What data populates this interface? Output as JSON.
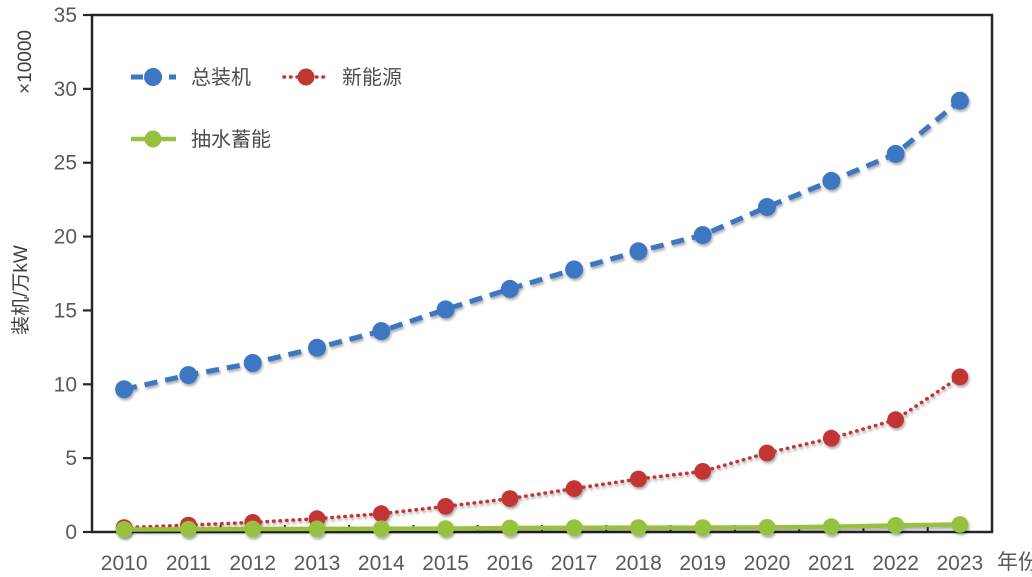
{
  "chart_data": {
    "type": "line",
    "title": "",
    "categories": [
      "2010",
      "2011",
      "2012",
      "2013",
      "2014",
      "2015",
      "2016",
      "2017",
      "2018",
      "2019",
      "2020",
      "2021",
      "2022",
      "2023"
    ],
    "series": [
      {
        "name": "总装机",
        "color": "#3D76C2",
        "line_style": "dashed",
        "marker": "circle",
        "values": [
          9.66,
          10.62,
          11.44,
          12.47,
          13.6,
          15.07,
          16.46,
          17.77,
          19.0,
          20.1,
          22.0,
          23.77,
          25.6,
          29.2
        ]
      },
      {
        "name": "新能源",
        "color": "#C23634",
        "line_style": "dotted",
        "marker": "circle",
        "values": [
          0.3,
          0.47,
          0.65,
          0.9,
          1.24,
          1.73,
          2.26,
          2.94,
          3.59,
          4.1,
          5.35,
          6.35,
          7.6,
          10.5
        ]
      },
      {
        "name": "抽水蓄能",
        "color": "#98C141",
        "line_style": "solid",
        "marker": "circle",
        "values": [
          0.17,
          0.18,
          0.2,
          0.21,
          0.22,
          0.23,
          0.27,
          0.29,
          0.3,
          0.3,
          0.31,
          0.36,
          0.45,
          0.51
        ]
      }
    ],
    "xlabel": "年份",
    "ylabel": "装机/万kW",
    "y_multiplier": "×10000",
    "ylim": [
      0,
      35
    ],
    "ytick_step": 5,
    "grid": false,
    "legend_position": "top-left-inside",
    "axis_color": "#262626",
    "tick_label_color": "#595959"
  }
}
